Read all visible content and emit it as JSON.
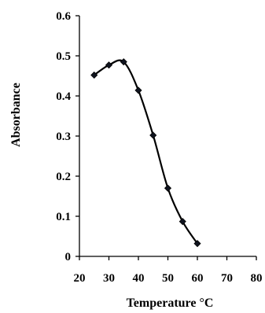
{
  "chart_data": {
    "type": "line",
    "title": "",
    "xlabel": "Temperature °C",
    "ylabel": "Absorbance",
    "xlim": [
      20,
      80
    ],
    "ylim": [
      0,
      0.6
    ],
    "x_ticks": [
      "20",
      "30",
      "40",
      "50",
      "60",
      "70",
      "80"
    ],
    "y_ticks": [
      "0",
      "0.1",
      "0.2",
      "0.3",
      "0.4",
      "0.5",
      "0.6"
    ],
    "grid": false,
    "legend": "none",
    "series": [
      {
        "x": [
          25,
          30,
          35,
          40,
          45,
          50,
          55,
          60
        ],
        "y": [
          0.452,
          0.477,
          0.485,
          0.414,
          0.302,
          0.17,
          0.087,
          0.032
        ],
        "marker": "diamond",
        "line": "smooth"
      }
    ]
  }
}
